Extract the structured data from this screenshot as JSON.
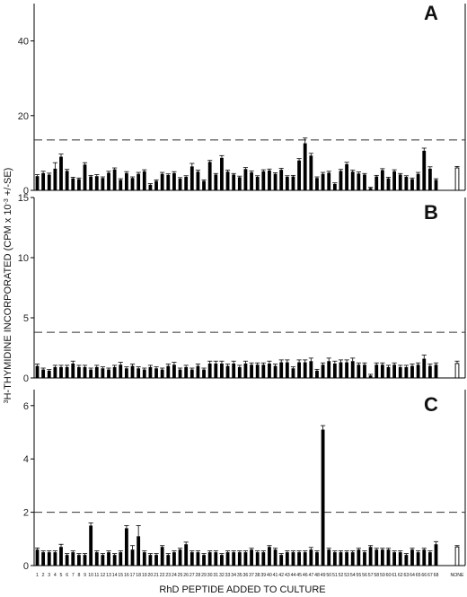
{
  "figure": {
    "ylabel_prefix": "3",
    "ylabel_main": "H-THYMIDINE INCORPORATED (CPM x 10",
    "ylabel_exp": "-3",
    "ylabel_suffix": " +/-SE)",
    "xlabel": "RhD PEPTIDE ADDED TO CULTURE"
  },
  "chart_data": [
    {
      "type": "bar",
      "panel": "A",
      "ylim": [
        0,
        50
      ],
      "yticks": [
        0,
        20,
        40
      ],
      "threshold": 13.5,
      "categories": [
        "1",
        "2",
        "3",
        "4",
        "5",
        "6",
        "7",
        "8",
        "9",
        "10",
        "11",
        "12",
        "13",
        "14",
        "15",
        "16",
        "17",
        "18",
        "19",
        "20",
        "21",
        "22",
        "23",
        "24",
        "25",
        "26",
        "27",
        "28",
        "29",
        "30",
        "31",
        "32",
        "33",
        "34",
        "35",
        "36",
        "37",
        "38",
        "39",
        "40",
        "41",
        "42",
        "43",
        "44",
        "45",
        "46",
        "47",
        "48",
        "49",
        "50",
        "51",
        "52",
        "53",
        "54",
        "55",
        "56",
        "57",
        "58",
        "59",
        "60",
        "61",
        "62",
        "63",
        "64",
        "65",
        "66",
        "67",
        "68",
        "NONE"
      ],
      "values": [
        3.8,
        4.6,
        4.2,
        5.8,
        9,
        5.2,
        3.2,
        3,
        6.9,
        3.7,
        3.8,
        3.3,
        4.7,
        5.6,
        2.8,
        4.6,
        3.3,
        4.4,
        5.1,
        1.5,
        2.5,
        4.4,
        4.1,
        4.6,
        3.1,
        3.6,
        6.4,
        5,
        2.5,
        7.6,
        4.2,
        8.7,
        5,
        4.2,
        3.5,
        5.7,
        4.8,
        3.6,
        5.1,
        5.3,
        4.4,
        5.5,
        3.6,
        3.7,
        8,
        12.6,
        9.3,
        3.3,
        4.4,
        4.7,
        1.7,
        5.2,
        7,
        5,
        4.5,
        4.2,
        0.6,
        3.7,
        5.4,
        3.2,
        5.1,
        4.2,
        3.6,
        3,
        4.4,
        10.6,
        5.8,
        2.8,
        6
      ],
      "errors": [
        0.4,
        0.5,
        0.4,
        1.6,
        0.7,
        0.4,
        0.3,
        0.3,
        0.5,
        0.3,
        0.4,
        0.3,
        0.4,
        0.4,
        0.3,
        0.4,
        0.3,
        0.4,
        0.4,
        0.3,
        0.3,
        0.4,
        0.3,
        0.4,
        0.3,
        0.3,
        0.8,
        0.4,
        0.3,
        0.4,
        0.3,
        0.6,
        0.4,
        0.3,
        0.3,
        0.4,
        0.4,
        0.3,
        0.4,
        0.4,
        0.3,
        0.4,
        0.3,
        0.3,
        0.5,
        1.4,
        0.6,
        0.3,
        0.4,
        0.4,
        0.3,
        0.4,
        0.5,
        0.4,
        0.4,
        0.3,
        0.2,
        0.3,
        0.4,
        0.3,
        0.4,
        0.3,
        0.3,
        0.3,
        0.4,
        0.7,
        0.5,
        0.3,
        0.4
      ]
    },
    {
      "type": "bar",
      "panel": "B",
      "ylim": [
        0,
        15
      ],
      "yticks": [
        0,
        5,
        10,
        15
      ],
      "threshold": 3.8,
      "categories": [
        "1",
        "2",
        "3",
        "4",
        "5",
        "6",
        "7",
        "8",
        "9",
        "10",
        "11",
        "12",
        "13",
        "14",
        "15",
        "16",
        "17",
        "18",
        "19",
        "20",
        "21",
        "22",
        "23",
        "24",
        "25",
        "26",
        "27",
        "28",
        "29",
        "30",
        "31",
        "32",
        "33",
        "34",
        "35",
        "36",
        "37",
        "38",
        "39",
        "40",
        "41",
        "42",
        "43",
        "44",
        "45",
        "46",
        "47",
        "48",
        "49",
        "50",
        "51",
        "52",
        "53",
        "54",
        "55",
        "56",
        "57",
        "58",
        "59",
        "60",
        "61",
        "62",
        "63",
        "64",
        "65",
        "66",
        "67",
        "68",
        "NONE"
      ],
      "values": [
        1,
        0.7,
        0.6,
        0.9,
        0.9,
        0.9,
        1.2,
        0.9,
        0.9,
        0.7,
        0.9,
        0.8,
        0.7,
        0.9,
        1.1,
        0.8,
        1,
        0.8,
        0.7,
        0.9,
        0.8,
        0.7,
        1,
        1.1,
        0.7,
        0.9,
        0.7,
        1,
        0.7,
        1.2,
        1.2,
        1.2,
        1,
        1.2,
        0.9,
        1.2,
        1.1,
        1.1,
        1.1,
        1.2,
        1,
        1.3,
        1.3,
        0.8,
        1.3,
        1.3,
        1.4,
        0.6,
        1.1,
        1.4,
        1.2,
        1.3,
        1.3,
        1.4,
        1.1,
        1.1,
        0.2,
        1.1,
        1.1,
        0.9,
        1.1,
        0.9,
        0.9,
        1,
        1.1,
        1.6,
        1,
        1.1,
        1.2
      ],
      "errors": [
        0.15,
        0.12,
        0.1,
        0.15,
        0.15,
        0.15,
        0.2,
        0.15,
        0.15,
        0.12,
        0.15,
        0.12,
        0.12,
        0.15,
        0.2,
        0.12,
        0.15,
        0.12,
        0.12,
        0.15,
        0.12,
        0.12,
        0.15,
        0.2,
        0.12,
        0.15,
        0.12,
        0.15,
        0.12,
        0.2,
        0.2,
        0.2,
        0.15,
        0.2,
        0.15,
        0.2,
        0.15,
        0.15,
        0.15,
        0.2,
        0.15,
        0.2,
        0.2,
        0.12,
        0.2,
        0.2,
        0.25,
        0.12,
        0.15,
        0.25,
        0.2,
        0.2,
        0.2,
        0.25,
        0.15,
        0.15,
        0.1,
        0.15,
        0.15,
        0.15,
        0.15,
        0.15,
        0.15,
        0.15,
        0.15,
        0.3,
        0.15,
        0.15,
        0.2
      ]
    },
    {
      "type": "bar",
      "panel": "C",
      "ylim": [
        0,
        6.6
      ],
      "yticks": [
        0,
        2,
        4,
        6
      ],
      "threshold": 2,
      "categories": [
        "1",
        "2",
        "3",
        "4",
        "5",
        "6",
        "7",
        "8",
        "9",
        "10",
        "11",
        "12",
        "13",
        "14",
        "15",
        "16",
        "17",
        "18",
        "19",
        "20",
        "21",
        "22",
        "23",
        "24",
        "25",
        "26",
        "27",
        "28",
        "29",
        "30",
        "31",
        "32",
        "33",
        "34",
        "35",
        "36",
        "37",
        "38",
        "39",
        "40",
        "41",
        "42",
        "43",
        "44",
        "45",
        "46",
        "47",
        "48",
        "49",
        "50",
        "51",
        "52",
        "53",
        "54",
        "55",
        "56",
        "57",
        "58",
        "59",
        "60",
        "61",
        "62",
        "63",
        "64",
        "65",
        "66",
        "67",
        "68",
        "NONE"
      ],
      "values": [
        0.6,
        0.5,
        0.5,
        0.5,
        0.7,
        0.4,
        0.5,
        0.4,
        0.4,
        1.5,
        0.5,
        0.4,
        0.5,
        0.4,
        0.5,
        1.4,
        0.6,
        1.1,
        0.5,
        0.4,
        0.4,
        0.7,
        0.4,
        0.5,
        0.6,
        0.8,
        0.5,
        0.5,
        0.4,
        0.5,
        0.5,
        0.4,
        0.5,
        0.5,
        0.5,
        0.5,
        0.6,
        0.5,
        0.5,
        0.7,
        0.6,
        0.4,
        0.5,
        0.5,
        0.5,
        0.5,
        0.6,
        0.5,
        5.1,
        0.6,
        0.5,
        0.5,
        0.5,
        0.5,
        0.6,
        0.5,
        0.7,
        0.6,
        0.6,
        0.6,
        0.5,
        0.5,
        0.4,
        0.6,
        0.5,
        0.6,
        0.5,
        0.8,
        0.7
      ],
      "errors": [
        0.06,
        0.05,
        0.05,
        0.05,
        0.1,
        0.05,
        0.05,
        0.05,
        0.05,
        0.1,
        0.05,
        0.05,
        0.05,
        0.05,
        0.05,
        0.1,
        0.15,
        0.4,
        0.05,
        0.05,
        0.05,
        0.05,
        0.05,
        0.05,
        0.05,
        0.08,
        0.05,
        0.05,
        0.05,
        0.05,
        0.05,
        0.05,
        0.05,
        0.05,
        0.05,
        0.05,
        0.05,
        0.05,
        0.05,
        0.05,
        0.05,
        0.05,
        0.05,
        0.05,
        0.05,
        0.05,
        0.08,
        0.05,
        0.15,
        0.05,
        0.05,
        0.05,
        0.05,
        0.05,
        0.05,
        0.05,
        0.05,
        0.05,
        0.05,
        0.05,
        0.05,
        0.05,
        0.05,
        0.05,
        0.05,
        0.05,
        0.05,
        0.1,
        0.05
      ]
    }
  ]
}
